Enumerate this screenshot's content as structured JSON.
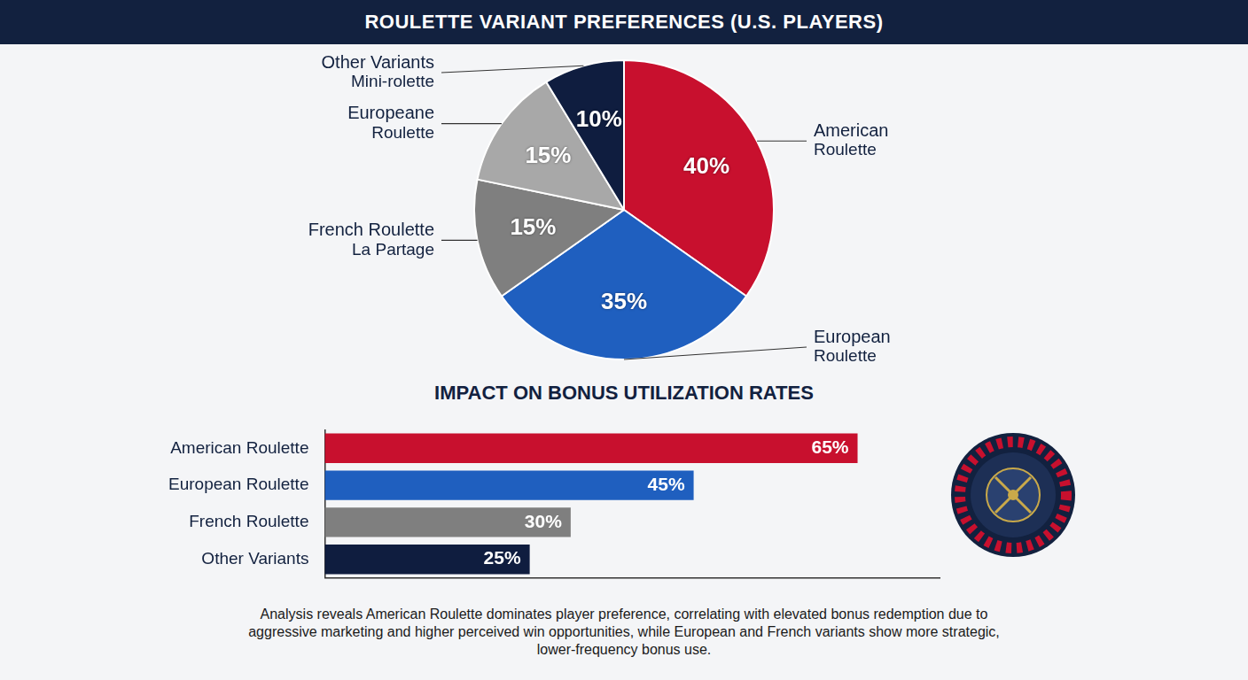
{
  "title": "ROULETTE VARIANT PREFERENCES (U.S. PLAYERS)",
  "chart_data": [
    {
      "type": "pie",
      "categories": [
        [
          "American",
          "Roulette"
        ],
        [
          "European",
          "Roulette"
        ],
        [
          "French Roulette",
          "La Partage"
        ],
        [
          "Europeane",
          "Roulette"
        ],
        [
          "Other Variants",
          "Mini-rolette"
        ]
      ],
      "values": [
        40,
        35,
        15,
        15,
        10
      ],
      "value_labels": [
        "40%",
        "35%",
        "15%",
        "15%",
        "10%"
      ],
      "colors": [
        "#c8102e",
        "#1f5fbf",
        "#7f7f7f",
        "#a8a8a8",
        "#0f1d3f"
      ],
      "data_labels": true
    },
    {
      "type": "bar",
      "title": "IMPACT ON BONUS UTILIZATION RATES",
      "orientation": "horizontal",
      "categories": [
        "American Roulette",
        "European Roulette",
        "French Roulette",
        "Other Variants"
      ],
      "values": [
        65,
        45,
        30,
        25
      ],
      "value_labels": [
        "65%",
        "45%",
        "30%",
        "25%"
      ],
      "colors": [
        "#c8102e",
        "#1f5fbf",
        "#7f7f7f",
        "#0f1d3f"
      ],
      "xlim": [
        0,
        75
      ],
      "grid": false,
      "tick_labels": "y",
      "data_labels": true
    }
  ],
  "caption": "Analysis reveals American Roulette dominates player preference, correlating with elevated bonus redemption due to aggressive marketing and higher perceived win opportunities, while European and French variants show more strategic, lower-frequency bonus use."
}
